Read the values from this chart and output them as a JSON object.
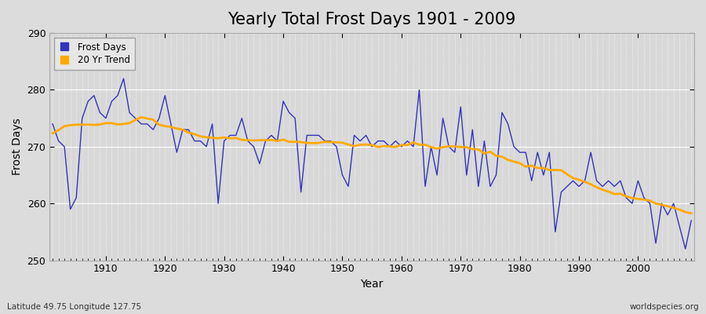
{
  "title": "Yearly Total Frost Days 1901 - 2009",
  "xlabel": "Year",
  "ylabel": "Frost Days",
  "subtitle": "Latitude 49.75 Longitude 127.75",
  "watermark": "worldspecies.org",
  "years": [
    1901,
    1902,
    1903,
    1904,
    1905,
    1906,
    1907,
    1908,
    1909,
    1910,
    1911,
    1912,
    1913,
    1914,
    1915,
    1916,
    1917,
    1918,
    1919,
    1920,
    1921,
    1922,
    1923,
    1924,
    1925,
    1926,
    1927,
    1928,
    1929,
    1930,
    1931,
    1932,
    1933,
    1934,
    1935,
    1936,
    1937,
    1938,
    1939,
    1940,
    1941,
    1942,
    1943,
    1944,
    1945,
    1946,
    1947,
    1948,
    1949,
    1950,
    1951,
    1952,
    1953,
    1954,
    1955,
    1956,
    1957,
    1958,
    1959,
    1960,
    1961,
    1962,
    1963,
    1964,
    1965,
    1966,
    1967,
    1968,
    1969,
    1970,
    1971,
    1972,
    1973,
    1974,
    1975,
    1976,
    1977,
    1978,
    1979,
    1980,
    1981,
    1982,
    1983,
    1984,
    1985,
    1986,
    1987,
    1988,
    1989,
    1990,
    1991,
    1992,
    1993,
    1994,
    1995,
    1996,
    1997,
    1998,
    1999,
    2000,
    2001,
    2002,
    2003,
    2004,
    2005,
    2006,
    2007,
    2008,
    2009
  ],
  "frost_days": [
    274,
    271,
    270,
    259,
    261,
    275,
    278,
    279,
    276,
    275,
    278,
    279,
    282,
    276,
    275,
    274,
    274,
    273,
    275,
    279,
    274,
    269,
    273,
    273,
    271,
    271,
    270,
    274,
    260,
    271,
    272,
    272,
    275,
    271,
    270,
    267,
    271,
    272,
    271,
    278,
    276,
    275,
    262,
    272,
    272,
    272,
    271,
    271,
    270,
    265,
    263,
    272,
    271,
    272,
    270,
    271,
    271,
    270,
    271,
    270,
    271,
    270,
    280,
    263,
    270,
    265,
    275,
    270,
    269,
    277,
    265,
    273,
    263,
    271,
    263,
    265,
    276,
    274,
    270,
    269,
    269,
    264,
    269,
    265,
    269,
    255,
    262,
    263,
    264,
    263,
    264,
    269,
    264,
    263,
    264,
    263,
    264,
    261,
    260,
    264,
    261,
    260,
    253,
    260,
    258,
    260,
    256,
    252,
    257
  ],
  "ylim": [
    250,
    290
  ],
  "yticks": [
    250,
    260,
    270,
    280,
    290
  ],
  "bg_color": "#dcdcdc",
  "plot_bg_color": "#d8d8d8",
  "line_color": "#3333bb",
  "trend_color": "#ffaa00",
  "legend_frost_label": "Frost Days",
  "legend_trend_label": "20 Yr Trend",
  "grid_color": "#ffffff",
  "title_fontsize": 15,
  "axis_fontsize": 9,
  "label_fontsize": 10
}
